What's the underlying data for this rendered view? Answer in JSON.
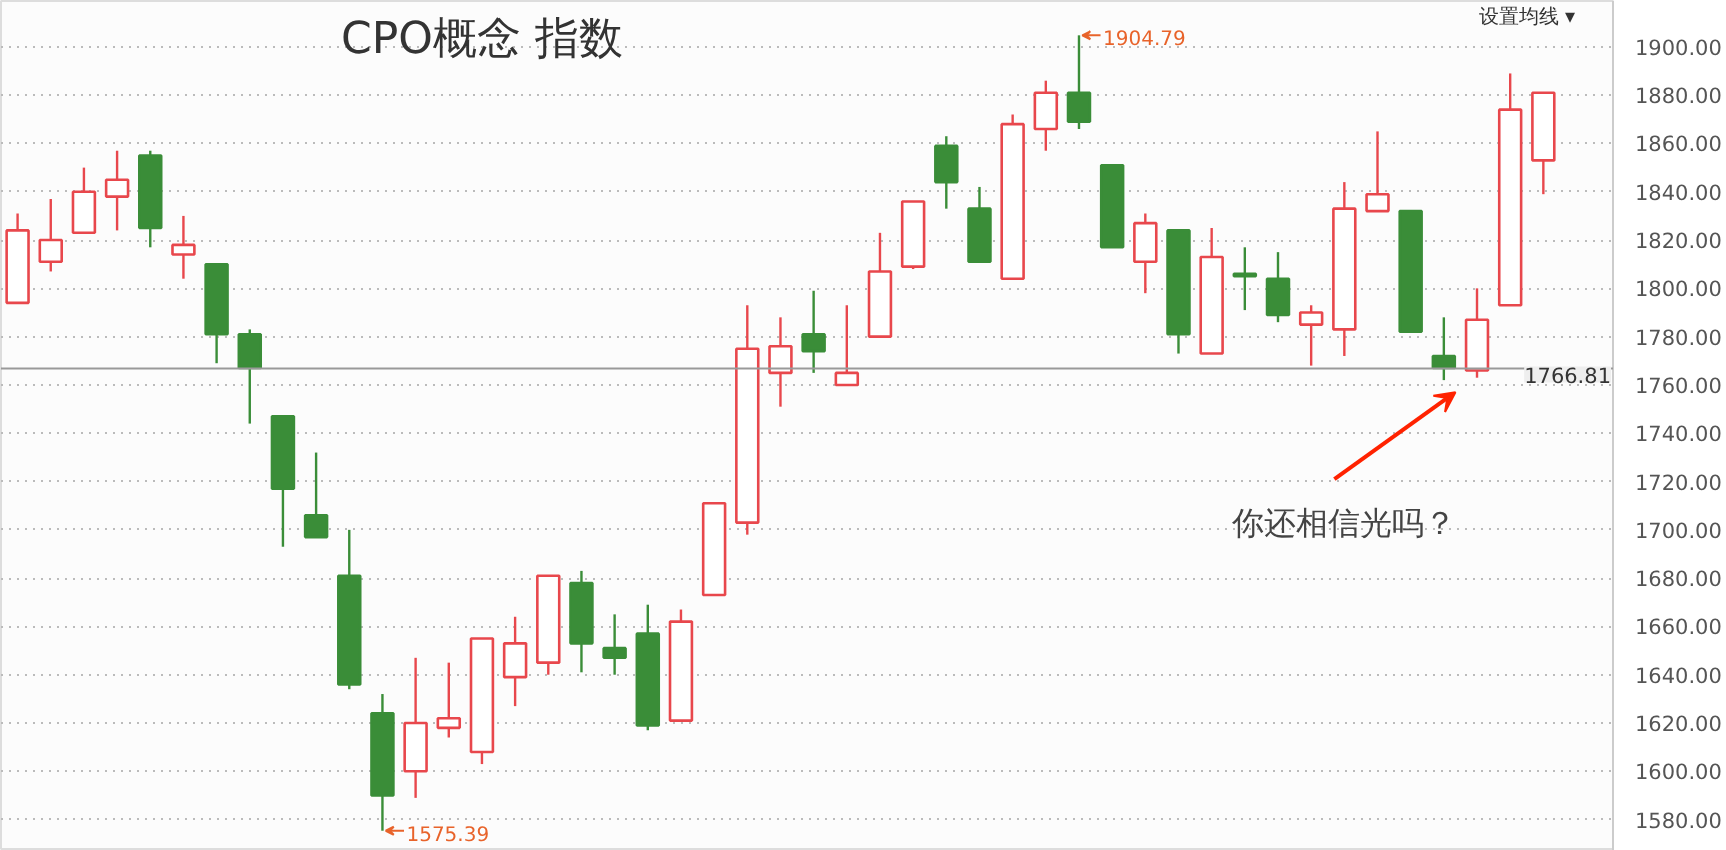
{
  "chart_data": {
    "type": "candlestick",
    "title": "CPO概念 指数",
    "categories": [
      null,
      null,
      null,
      null,
      null,
      null,
      null,
      null,
      null,
      null,
      null,
      null,
      null,
      null,
      null,
      null,
      null,
      null,
      null,
      null,
      null,
      null,
      null,
      null,
      null,
      null,
      null,
      null,
      null,
      null,
      null,
      null,
      null,
      null,
      null,
      null,
      null,
      null,
      null,
      null,
      null,
      null,
      null,
      null,
      null,
      null,
      null
    ],
    "ohlc": [
      [
        1794,
        1831,
        1794,
        1824
      ],
      [
        1811,
        1837,
        1807,
        1820
      ],
      [
        1823,
        1850,
        1823,
        1840
      ],
      [
        1838,
        1857,
        1824,
        1845
      ],
      [
        1855,
        1857,
        1817,
        1825
      ],
      [
        1814,
        1830,
        1804,
        1818
      ],
      [
        1810,
        1810,
        1769,
        1781
      ],
      [
        1781,
        1783,
        1744,
        1767
      ],
      [
        1747,
        1747,
        1693,
        1717
      ],
      [
        1706,
        1732,
        1697,
        1697
      ],
      [
        1681,
        1700,
        1634,
        1636
      ],
      [
        1624,
        1632,
        1575.39,
        1590
      ],
      [
        1600,
        1647,
        1589,
        1620
      ],
      [
        1618,
        1645,
        1614,
        1622
      ],
      [
        1608,
        1655,
        1603,
        1655
      ],
      [
        1639,
        1664,
        1627,
        1653
      ],
      [
        1645,
        1681,
        1640,
        1681
      ],
      [
        1678,
        1683,
        1641,
        1653
      ],
      [
        1651,
        1665,
        1640,
        1647
      ],
      [
        1657,
        1669,
        1617,
        1619
      ],
      [
        1621,
        1667,
        1621,
        1662
      ],
      [
        1673,
        1711,
        1673,
        1711
      ],
      [
        1703,
        1793,
        1698,
        1775
      ],
      [
        1765,
        1788,
        1751,
        1776
      ],
      [
        1781,
        1799,
        1765,
        1774
      ],
      [
        1760,
        1793,
        1760,
        1765
      ],
      [
        1780,
        1823,
        1780,
        1807
      ],
      [
        1809,
        1836,
        1808,
        1836
      ],
      [
        1859,
        1863,
        1833,
        1844
      ],
      [
        1833,
        1842,
        1811,
        1811
      ],
      [
        1804,
        1872,
        1804,
        1868
      ],
      [
        1866,
        1886,
        1857,
        1881
      ],
      [
        1881,
        1904.79,
        1866,
        1869
      ],
      [
        1851,
        1851,
        1817,
        1817
      ],
      [
        1811,
        1831,
        1798,
        1827
      ],
      [
        1824,
        1824,
        1773,
        1781
      ],
      [
        1773,
        1825,
        1773,
        1813
      ],
      [
        1806,
        1817,
        1791,
        1805
      ],
      [
        1804,
        1815,
        1786,
        1789
      ],
      [
        1785,
        1793,
        1768,
        1790
      ],
      [
        1783,
        1844,
        1772,
        1833
      ],
      [
        1832,
        1865,
        1832,
        1839
      ],
      [
        1832,
        1832,
        1782,
        1782
      ],
      [
        1772,
        1788,
        1762,
        1767
      ],
      [
        1766,
        1800,
        1763,
        1787
      ],
      [
        1793,
        1889,
        1793,
        1874
      ],
      [
        1853,
        1881,
        1839,
        1881
      ]
    ],
    "colors": [
      "#e8474c",
      "#e8474c",
      "#e8474c",
      "#e8474c",
      "#3a8d38",
      "#e8474c",
      "#3a8d38",
      "#3a8d38",
      "#3a8d38",
      "#3a8d38",
      "#3a8d38",
      "#3a8d38",
      "#e8474c",
      "#e8474c",
      "#e8474c",
      "#e8474c",
      "#e8474c",
      "#3a8d38",
      "#3a8d38",
      "#3a8d38",
      "#e8474c",
      "#e8474c",
      "#e8474c",
      "#e8474c",
      "#3a8d38",
      "#e8474c",
      "#e8474c",
      "#e8474c",
      "#3a8d38",
      "#3a8d38",
      "#e8474c",
      "#e8474c",
      "#3a8d38",
      "#3a8d38",
      "#e8474c",
      "#3a8d38",
      "#e8474c",
      "#3a8d38",
      "#3a8d38",
      "#e8474c",
      "#e8474c",
      "#e8474c",
      "#3a8d38",
      "#3a8d38",
      "#e8474c",
      "#e8474c",
      "#e8474c"
    ],
    "ylim": [
      1567,
      1919
    ],
    "yticks": [
      {
        "value": 1580,
        "label": "1580.00"
      },
      {
        "value": 1600,
        "label": "1600.00"
      },
      {
        "value": 1620,
        "label": "1620.00"
      },
      {
        "value": 1640,
        "label": "1640.00"
      },
      {
        "value": 1660,
        "label": "1660.00"
      },
      {
        "value": 1680,
        "label": "1680.00"
      },
      {
        "value": 1700,
        "label": "1700.00"
      },
      {
        "value": 1720,
        "label": "1720.00"
      },
      {
        "value": 1740,
        "label": "1740.00"
      },
      {
        "value": 1760,
        "label": "1760.00"
      },
      {
        "value": 1780,
        "label": "1780.00"
      },
      {
        "value": 1800,
        "label": "1800.00"
      },
      {
        "value": 1820,
        "label": "1820.00"
      },
      {
        "value": 1840,
        "label": "1840.00"
      },
      {
        "value": 1860,
        "label": "1860.00"
      },
      {
        "value": 1880,
        "label": "1880.00"
      },
      {
        "value": 1900,
        "label": "1900.00"
      }
    ],
    "grid": "y",
    "ref_lines": [
      {
        "axis": "y",
        "value": 1766.81,
        "label": "1766.81",
        "color": "#999999"
      }
    ],
    "annotations": [
      "1575.39",
      "1904.79",
      "你还相信光吗？",
      "设置均线 ▾"
    ]
  }
}
